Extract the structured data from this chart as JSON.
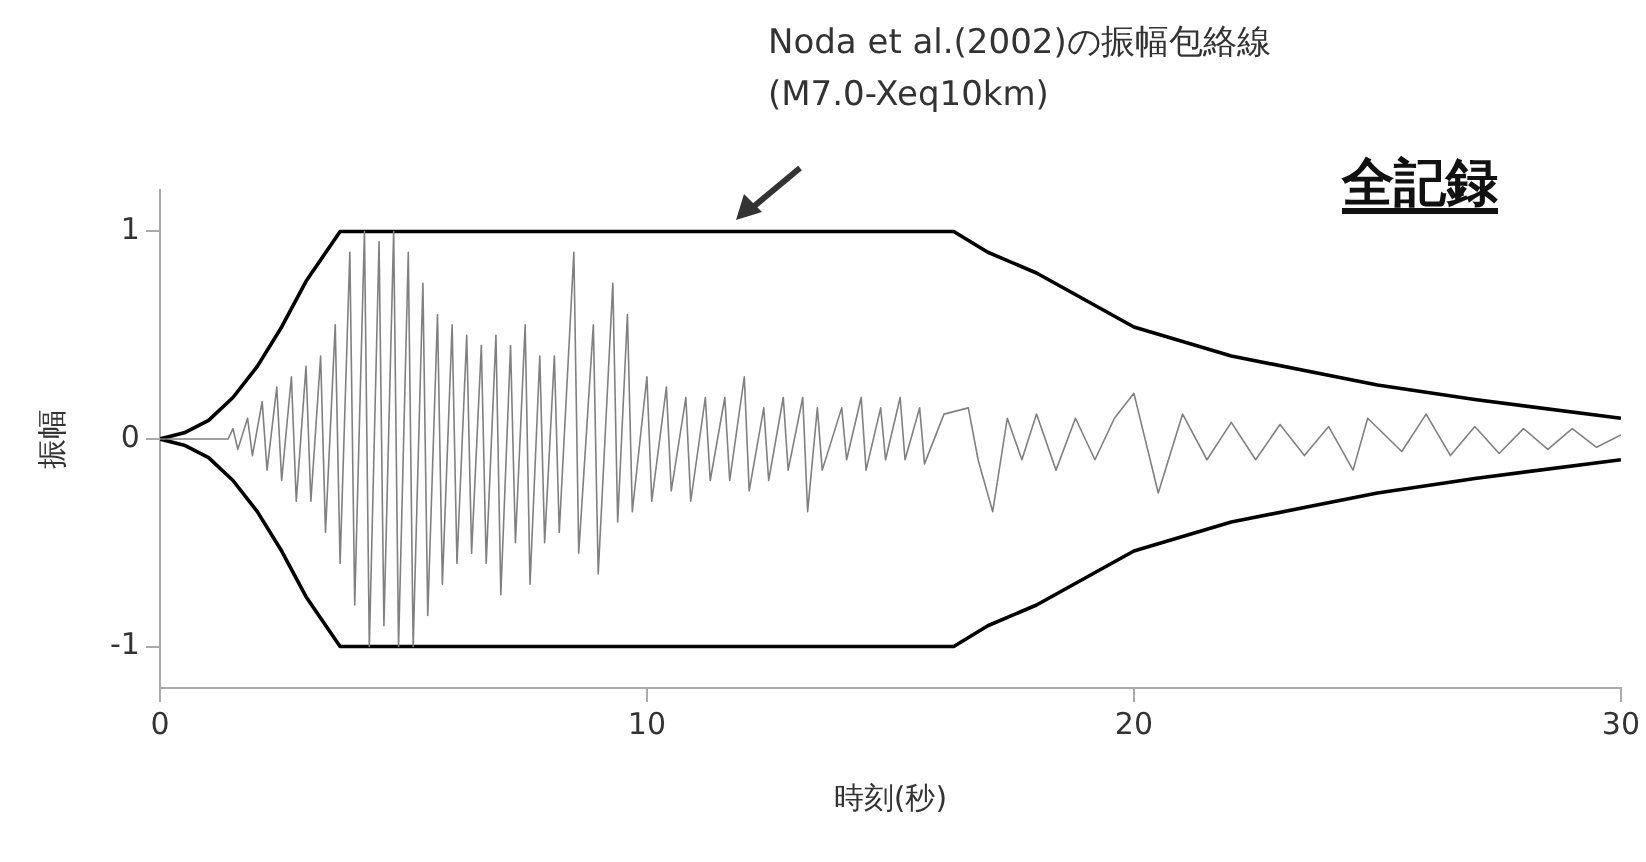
{
  "chart_data": {
    "type": "line",
    "title": "全記録",
    "xlabel": "時刻(秒)",
    "ylabel": "振幅",
    "xlim": [
      0,
      30
    ],
    "xticks": [
      0,
      10,
      20,
      30
    ],
    "ylim": [
      -1.2,
      1.2
    ],
    "yticks": [
      -1,
      0,
      1
    ],
    "marker": "none",
    "line_style": "solid",
    "annotations": [
      "Noda et al.(2002)の振幅包絡線\n(M7.0-Xeq10km)"
    ],
    "series": [
      {
        "color": "#808080",
        "x": [
          0,
          1.4,
          1.5,
          1.6,
          1.8,
          1.9,
          2.1,
          2.2,
          2.4,
          2.5,
          2.7,
          2.8,
          3.0,
          3.1,
          3.3,
          3.4,
          3.6,
          3.7,
          3.9,
          4.0,
          4.2,
          4.3,
          4.5,
          4.6,
          4.8,
          4.9,
          5.1,
          5.2,
          5.4,
          5.5,
          5.7,
          5.8,
          6.0,
          6.1,
          6.3,
          6.4,
          6.6,
          6.7,
          6.9,
          7.0,
          7.2,
          7.3,
          7.5,
          7.6,
          7.8,
          7.9,
          8.1,
          8.2,
          8.5,
          8.6,
          8.9,
          9.0,
          9.3,
          9.4,
          9.6,
          9.7,
          10.0,
          10.1,
          10.4,
          10.5,
          10.8,
          10.9,
          11.2,
          11.3,
          11.6,
          11.7,
          12.0,
          12.1,
          12.4,
          12.5,
          12.8,
          12.9,
          13.2,
          13.3,
          13.5,
          13.6,
          14.0,
          14.1,
          14.4,
          14.5,
          14.8,
          14.9,
          15.2,
          15.3,
          15.6,
          15.7,
          16.1,
          16.6,
          16.8,
          17.1,
          17.4,
          17.7,
          18.0,
          18.4,
          18.8,
          19.2,
          19.6,
          20.0,
          20.5,
          21.0,
          21.5,
          22.0,
          22.5,
          23.0,
          23.5,
          24.0,
          24.5,
          24.8,
          25.5,
          26.0,
          26.5,
          27.0,
          27.5,
          28.0,
          28.5,
          29.0,
          29.5,
          30.0
        ],
        "values": [
          0,
          0,
          0.05,
          -0.05,
          0.1,
          -0.08,
          0.18,
          -0.15,
          0.25,
          -0.2,
          0.3,
          -0.3,
          0.35,
          -0.3,
          0.4,
          -0.45,
          0.55,
          -0.6,
          0.9,
          -0.8,
          1.0,
          -1.0,
          0.95,
          -0.9,
          1.0,
          -1.0,
          0.9,
          -1.0,
          0.75,
          -0.85,
          0.6,
          -0.7,
          0.55,
          -0.6,
          0.5,
          -0.55,
          0.45,
          -0.6,
          0.5,
          -0.75,
          0.45,
          -0.5,
          0.55,
          -0.7,
          0.4,
          -0.5,
          0.4,
          -0.45,
          0.9,
          -0.55,
          0.55,
          -0.65,
          0.75,
          -0.4,
          0.6,
          -0.35,
          0.3,
          -0.3,
          0.25,
          -0.25,
          0.2,
          -0.3,
          0.2,
          -0.2,
          0.2,
          -0.2,
          0.3,
          -0.25,
          0.15,
          -0.2,
          0.2,
          -0.15,
          0.2,
          -0.35,
          0.15,
          -0.15,
          0.15,
          -0.1,
          0.2,
          -0.15,
          0.15,
          -0.1,
          0.2,
          -0.1,
          0.15,
          -0.12,
          0.12,
          0.15,
          -0.1,
          -0.35,
          0.1,
          -0.1,
          0.12,
          -0.15,
          0.1,
          -0.1,
          0.1,
          0.22,
          -0.26,
          0.12,
          -0.1,
          0.08,
          -0.1,
          0.07,
          -0.08,
          0.06,
          -0.15,
          0.1,
          -0.06,
          0.12,
          -0.08,
          0.06,
          -0.07,
          0.05,
          -0.05,
          0.05,
          -0.04,
          0.02
        ]
      },
      {
        "color": "#000000",
        "x": [
          0,
          0.5,
          1,
          1.5,
          2,
          2.5,
          3,
          3.7,
          16.3,
          17,
          18,
          20,
          22,
          25,
          27,
          30
        ],
        "values": [
          0,
          0.03,
          0.09,
          0.2,
          0.35,
          0.54,
          0.76,
          1,
          1,
          0.9,
          0.8,
          0.54,
          0.4,
          0.26,
          0.19,
          0.1
        ]
      },
      {
        "color": "#000000",
        "x": [
          0,
          0.5,
          1,
          1.5,
          2,
          2.5,
          3,
          3.7,
          16.3,
          17,
          18,
          20,
          22,
          25,
          27,
          30
        ],
        "values": [
          0,
          -0.03,
          -0.09,
          -0.2,
          -0.35,
          -0.54,
          -0.76,
          -1,
          -1,
          -0.9,
          -0.8,
          -0.54,
          -0.4,
          -0.26,
          -0.19,
          -0.1
        ]
      }
    ]
  }
}
